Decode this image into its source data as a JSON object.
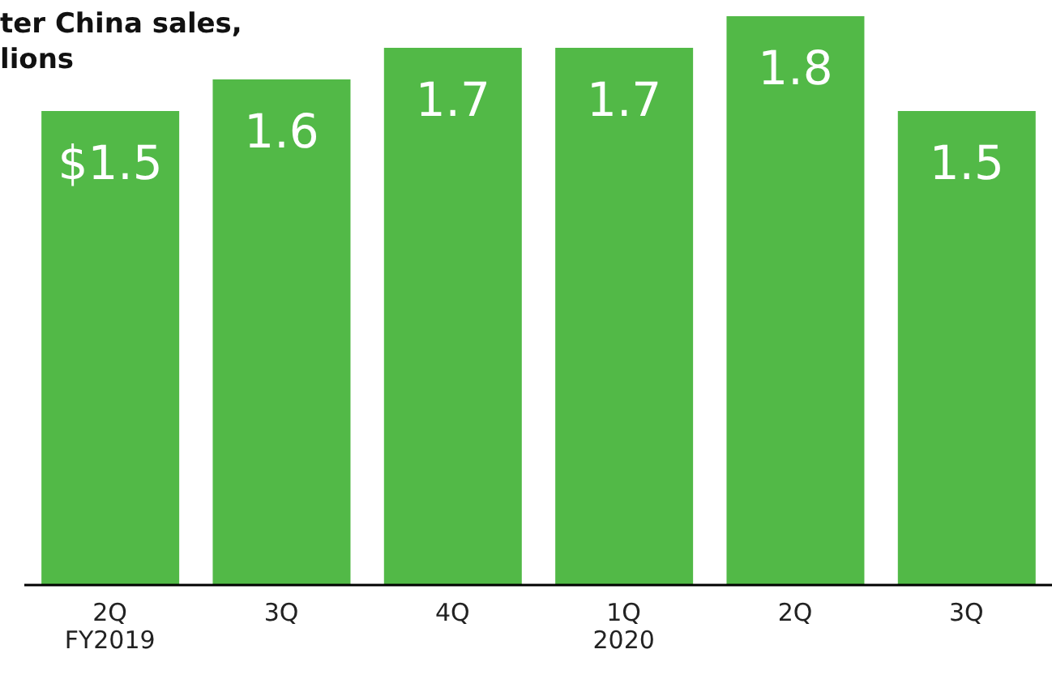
{
  "chart_data": {
    "type": "bar",
    "title": "ter China sales,",
    "subtitle": "lions",
    "categories": [
      "2Q\nFY2019",
      "3Q",
      "4Q",
      "1Q\n2020",
      "2Q",
      "3Q"
    ],
    "values": [
      1.5,
      1.6,
      1.7,
      1.7,
      1.8,
      1.5
    ],
    "value_labels": [
      "$1.5",
      "1.6",
      "1.7",
      "1.7",
      "1.8",
      "1.5"
    ],
    "color": "#52b947",
    "grid": false,
    "legend": false
  }
}
